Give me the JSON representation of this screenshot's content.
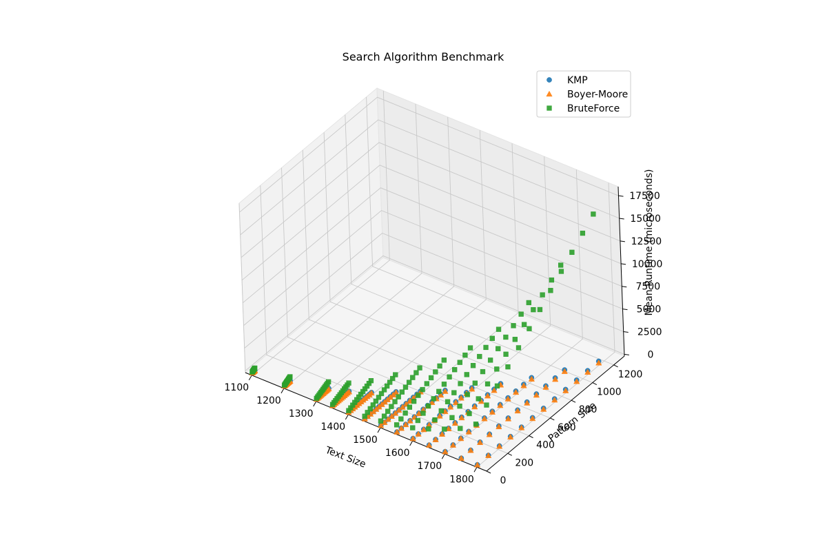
{
  "chart_data": {
    "type": "scatter",
    "title": "Search Algorithm Benchmark",
    "xlabel": "Text Size",
    "ylabel": "Pattern Size",
    "zlabel": "Mean Runtime (microseconds)",
    "xlim": [
      1080,
      1830
    ],
    "ylim": [
      0,
      1300
    ],
    "zlim": [
      -200,
      18500
    ],
    "x_ticks": [
      1100,
      1200,
      1300,
      1400,
      1500,
      1600,
      1700,
      1800
    ],
    "y_ticks": [
      0,
      200,
      400,
      600,
      800,
      1000,
      1200
    ],
    "z_ticks": [
      0,
      2500,
      5000,
      7500,
      10000,
      12500,
      15000,
      17500
    ],
    "legend_position": "top-right",
    "grid": true,
    "text_sizes": [
      1100,
      1200,
      1300,
      1350,
      1400,
      1450,
      1500,
      1550,
      1600,
      1650,
      1700,
      1750,
      1800
    ],
    "series": [
      {
        "name": "KMP",
        "marker": "circle",
        "color": "#1f77b4",
        "groups": [
          {
            "x": 1100,
            "p_min": 5,
            "p_max": 30,
            "z_min": 20,
            "z_max": 40
          },
          {
            "x": 1200,
            "p_min": 5,
            "p_max": 60,
            "z_min": 20,
            "z_max": 60
          },
          {
            "x": 1300,
            "p_min": 5,
            "p_max": 120,
            "z_min": 20,
            "z_max": 80
          },
          {
            "x": 1350,
            "p_min": 5,
            "p_max": 160,
            "z_min": 20,
            "z_max": 90
          },
          {
            "x": 1400,
            "p_min": 5,
            "p_max": 220,
            "z_min": 20,
            "z_max": 100
          },
          {
            "x": 1450,
            "p_min": 5,
            "p_max": 300,
            "z_min": 20,
            "z_max": 120
          },
          {
            "x": 1500,
            "p_min": 5,
            "p_max": 380,
            "z_min": 20,
            "z_max": 140
          },
          {
            "x": 1550,
            "p_min": 5,
            "p_max": 460,
            "z_min": 20,
            "z_max": 160
          },
          {
            "x": 1600,
            "p_min": 5,
            "p_max": 560,
            "z_min": 20,
            "z_max": 180
          },
          {
            "x": 1650,
            "p_min": 5,
            "p_max": 680,
            "z_min": 20,
            "z_max": 200
          },
          {
            "x": 1700,
            "p_min": 5,
            "p_max": 820,
            "z_min": 20,
            "z_max": 220
          },
          {
            "x": 1750,
            "p_min": 5,
            "p_max": 980,
            "z_min": 20,
            "z_max": 240
          },
          {
            "x": 1800,
            "p_min": 5,
            "p_max": 1150,
            "z_min": 20,
            "z_max": 260
          }
        ]
      },
      {
        "name": "Boyer-Moore",
        "marker": "triangle",
        "color": "#ff7f0e",
        "groups": [
          {
            "x": 1100,
            "p_min": 5,
            "p_max": 30,
            "z_min": 10,
            "z_max": 20
          },
          {
            "x": 1200,
            "p_min": 5,
            "p_max": 60,
            "z_min": 10,
            "z_max": 25
          },
          {
            "x": 1300,
            "p_min": 5,
            "p_max": 120,
            "z_min": 10,
            "z_max": 30
          },
          {
            "x": 1350,
            "p_min": 5,
            "p_max": 160,
            "z_min": 10,
            "z_max": 35
          },
          {
            "x": 1400,
            "p_min": 5,
            "p_max": 220,
            "z_min": 10,
            "z_max": 40
          },
          {
            "x": 1450,
            "p_min": 5,
            "p_max": 300,
            "z_min": 10,
            "z_max": 45
          },
          {
            "x": 1500,
            "p_min": 5,
            "p_max": 380,
            "z_min": 10,
            "z_max": 50
          },
          {
            "x": 1550,
            "p_min": 5,
            "p_max": 460,
            "z_min": 10,
            "z_max": 55
          },
          {
            "x": 1600,
            "p_min": 5,
            "p_max": 560,
            "z_min": 10,
            "z_max": 60
          },
          {
            "x": 1650,
            "p_min": 5,
            "p_max": 680,
            "z_min": 10,
            "z_max": 65
          },
          {
            "x": 1700,
            "p_min": 5,
            "p_max": 820,
            "z_min": 10,
            "z_max": 70
          },
          {
            "x": 1750,
            "p_min": 5,
            "p_max": 980,
            "z_min": 10,
            "z_max": 75
          },
          {
            "x": 1800,
            "p_min": 5,
            "p_max": 1150,
            "z_min": 10,
            "z_max": 80
          }
        ]
      },
      {
        "name": "BruteForce",
        "marker": "square",
        "color": "#2ca02c",
        "groups": [
          {
            "x": 1100,
            "p_min": 5,
            "p_max": 30,
            "z_min": 100,
            "z_max": 300
          },
          {
            "x": 1200,
            "p_min": 5,
            "p_max": 60,
            "z_min": 100,
            "z_max": 500
          },
          {
            "x": 1300,
            "p_min": 5,
            "p_max": 120,
            "z_min": 100,
            "z_max": 800
          },
          {
            "x": 1350,
            "p_min": 5,
            "p_max": 160,
            "z_min": 150,
            "z_max": 1000
          },
          {
            "x": 1400,
            "p_min": 5,
            "p_max": 220,
            "z_min": 200,
            "z_max": 1400
          },
          {
            "x": 1450,
            "p_min": 5,
            "p_max": 300,
            "z_min": 300,
            "z_max": 2000
          },
          {
            "x": 1500,
            "p_min": 5,
            "p_max": 380,
            "z_min": 500,
            "z_max": 2700
          },
          {
            "x": 1550,
            "p_min": 5,
            "p_max": 460,
            "z_min": 800,
            "z_max": 3500
          },
          {
            "x": 1600,
            "p_min": 5,
            "p_max": 560,
            "z_min": 1200,
            "z_max": 4600
          },
          {
            "x": 1650,
            "p_min": 5,
            "p_max": 680,
            "z_min": 1800,
            "z_max": 6200
          },
          {
            "x": 1700,
            "p_min": 5,
            "p_max": 820,
            "z_min": 2500,
            "z_max": 8500
          },
          {
            "x": 1750,
            "p_min": 5,
            "p_max": 980,
            "z_min": 3300,
            "z_max": 11800
          },
          {
            "x": 1800,
            "p_min": 5,
            "p_max": 1150,
            "z_min": 4500,
            "z_max": 16500
          }
        ]
      }
    ]
  }
}
